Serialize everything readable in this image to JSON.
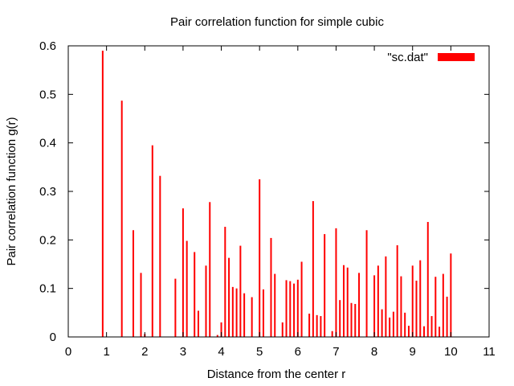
{
  "chart_data": {
    "type": "bar",
    "title": "Pair correlation function for simple cubic",
    "xlabel": "Distance from the center r",
    "ylabel": "Pair correlation function g(r)",
    "xlim": [
      0,
      11
    ],
    "ylim": [
      0,
      0.6
    ],
    "xticks": [
      "0",
      "1",
      "2",
      "3",
      "4",
      "5",
      "6",
      "7",
      "8",
      "9",
      "10",
      "11"
    ],
    "yticks": [
      "0",
      "0.1",
      "0.2",
      "0.3",
      "0.4",
      "0.5",
      "0.6"
    ],
    "grid": false,
    "legend_position": "top-right",
    "series": [
      {
        "name": "\"sc.dat\"",
        "color": "#ff0000",
        "x": [
          0.9,
          1.4,
          1.7,
          1.9,
          2.0,
          2.2,
          2.4,
          2.8,
          3.0,
          3.1,
          3.3,
          3.4,
          3.6,
          3.7,
          3.9,
          4.0,
          4.1,
          4.2,
          4.3,
          4.4,
          4.5,
          4.6,
          4.8,
          5.0,
          5.1,
          5.3,
          5.4,
          5.6,
          5.7,
          5.8,
          5.9,
          6.0,
          6.1,
          6.3,
          6.4,
          6.5,
          6.6,
          6.7,
          6.9,
          7.0,
          7.1,
          7.2,
          7.3,
          7.4,
          7.5,
          7.6,
          7.8,
          8.0,
          8.1,
          8.2,
          8.3,
          8.4,
          8.5,
          8.6,
          8.7,
          8.8,
          8.9,
          9.0,
          9.1,
          9.2,
          9.3,
          9.4,
          9.5,
          9.6,
          9.7,
          9.8,
          9.9,
          10.0
        ],
        "values": [
          0.59,
          0.487,
          0.22,
          0.132,
          0.006,
          0.395,
          0.332,
          0.12,
          0.265,
          0.198,
          0.175,
          0.054,
          0.147,
          0.278,
          0.004,
          0.03,
          0.227,
          0.163,
          0.103,
          0.1,
          0.188,
          0.09,
          0.082,
          0.325,
          0.098,
          0.204,
          0.13,
          0.03,
          0.117,
          0.115,
          0.11,
          0.118,
          0.155,
          0.048,
          0.28,
          0.045,
          0.043,
          0.212,
          0.012,
          0.224,
          0.076,
          0.148,
          0.143,
          0.07,
          0.068,
          0.132,
          0.22,
          0.127,
          0.147,
          0.057,
          0.166,
          0.04,
          0.052,
          0.189,
          0.125,
          0.05,
          0.023,
          0.147,
          0.116,
          0.158,
          0.022,
          0.237,
          0.043,
          0.124,
          0.021,
          0.13,
          0.083,
          0.172
        ]
      }
    ]
  }
}
